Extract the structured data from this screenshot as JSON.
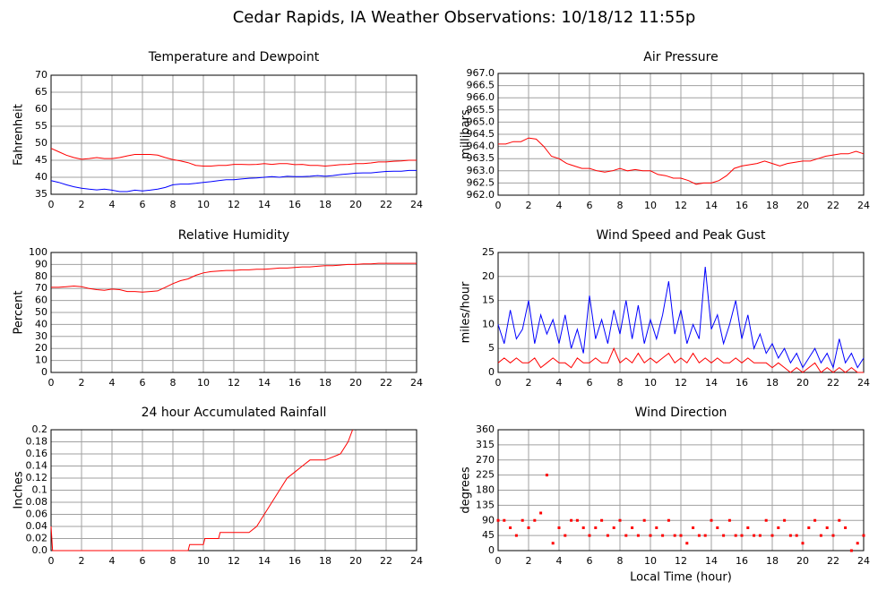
{
  "title": "Cedar Rapids, IA Weather Observations: 10/18/12 11:55p",
  "chart_data": [
    {
      "type": "line",
      "title": "Temperature and Dewpoint",
      "ylabel": "Fahrenheit",
      "x": [
        0,
        0.5,
        1,
        1.5,
        2,
        2.5,
        3,
        3.5,
        4,
        4.5,
        5,
        5.5,
        6,
        6.5,
        7,
        7.5,
        8,
        8.5,
        9,
        9.5,
        10,
        10.5,
        11,
        11.5,
        12,
        12.5,
        13,
        13.5,
        14,
        14.5,
        15,
        15.5,
        16,
        16.5,
        17,
        17.5,
        18,
        18.5,
        19,
        19.5,
        20,
        20.5,
        21,
        21.5,
        22,
        22.5,
        23,
        23.5,
        24
      ],
      "series": [
        {
          "color": "#ff0000",
          "values": [
            48.5,
            47.5,
            46.5,
            45.8,
            45.3,
            45.5,
            45.8,
            45.5,
            45.5,
            45.8,
            46.3,
            46.7,
            46.7,
            46.7,
            46.5,
            45.8,
            45.2,
            44.8,
            44.3,
            43.5,
            43.3,
            43.3,
            43.5,
            43.5,
            43.8,
            43.8,
            43.7,
            43.8,
            44,
            43.8,
            44,
            44,
            43.7,
            43.8,
            43.5,
            43.5,
            43.3,
            43.5,
            43.7,
            43.8,
            44,
            44,
            44.2,
            44.5,
            44.5,
            44.7,
            44.8,
            45,
            45
          ]
        },
        {
          "color": "#0000ff",
          "values": [
            39,
            38.5,
            37.8,
            37.2,
            36.8,
            36.5,
            36.3,
            36.5,
            36.2,
            35.8,
            35.8,
            36.2,
            36,
            36.2,
            36.5,
            37,
            37.8,
            38,
            38,
            38.2,
            38.5,
            38.7,
            39,
            39.3,
            39.3,
            39.5,
            39.7,
            39.8,
            40,
            40.2,
            40,
            40.3,
            40.2,
            40.2,
            40.3,
            40.5,
            40.3,
            40.5,
            40.8,
            41,
            41.2,
            41.3,
            41.3,
            41.5,
            41.7,
            41.8,
            41.8,
            42,
            42
          ]
        }
      ],
      "xlim": [
        0,
        24
      ],
      "xticks": [
        0,
        2,
        4,
        6,
        8,
        10,
        12,
        14,
        16,
        18,
        20,
        22,
        24
      ],
      "ylim": [
        35,
        70
      ],
      "yticks": [
        35,
        40,
        45,
        50,
        55,
        60,
        65,
        70
      ],
      "grid": true
    },
    {
      "type": "line",
      "title": "Air Pressure",
      "ylabel": "millibars",
      "x": [
        0,
        0.5,
        1,
        1.5,
        2,
        2.5,
        3,
        3.5,
        4,
        4.5,
        5,
        5.5,
        6,
        6.5,
        7,
        7.5,
        8,
        8.5,
        9,
        9.5,
        10,
        10.5,
        11,
        11.5,
        12,
        12.5,
        13,
        13.5,
        14,
        14.5,
        15,
        15.5,
        16,
        16.5,
        17,
        17.5,
        18,
        18.5,
        19,
        19.5,
        20,
        20.5,
        21,
        21.5,
        22,
        22.5,
        23,
        23.5,
        24
      ],
      "series": [
        {
          "color": "#ff0000",
          "values": [
            964.1,
            964.1,
            964.2,
            964.2,
            964.35,
            964.3,
            964.0,
            963.6,
            963.5,
            963.3,
            963.2,
            963.1,
            963.1,
            963.0,
            962.95,
            963.0,
            963.1,
            963.0,
            963.05,
            963.0,
            963.0,
            962.85,
            962.8,
            962.7,
            962.7,
            962.6,
            962.45,
            962.5,
            962.5,
            962.6,
            962.8,
            963.1,
            963.2,
            963.25,
            963.3,
            963.4,
            963.3,
            963.2,
            963.3,
            963.35,
            963.4,
            963.4,
            963.5,
            963.6,
            963.65,
            963.7,
            963.7,
            963.8,
            963.7
          ]
        }
      ],
      "xlim": [
        0,
        24
      ],
      "xticks": [
        0,
        2,
        4,
        6,
        8,
        10,
        12,
        14,
        16,
        18,
        20,
        22,
        24
      ],
      "ylim": [
        962,
        967
      ],
      "yticks": [
        {
          "value": 962,
          "label": "962.0"
        },
        962.5,
        {
          "value": 963,
          "label": "963.0"
        },
        963.5,
        {
          "value": 964,
          "label": "964.0"
        },
        964.5,
        {
          "value": 965,
          "label": "965.0"
        },
        965.5,
        {
          "value": 966,
          "label": "966.0"
        },
        966.5,
        {
          "value": 967,
          "label": "967.0"
        }
      ],
      "grid": true
    },
    {
      "type": "line",
      "title": "Relative Humidity",
      "ylabel": "Percent",
      "x": [
        0,
        0.5,
        1,
        1.5,
        2,
        2.5,
        3,
        3.5,
        4,
        4.5,
        5,
        5.5,
        6,
        6.5,
        7,
        7.5,
        8,
        8.5,
        9,
        9.5,
        10,
        10.5,
        11,
        11.5,
        12,
        12.5,
        13,
        13.5,
        14,
        14.5,
        15,
        15.5,
        16,
        16.5,
        17,
        17.5,
        18,
        18.5,
        19,
        19.5,
        20,
        20.5,
        21,
        21.5,
        22,
        22.5,
        23,
        23.5,
        24
      ],
      "series": [
        {
          "color": "#ff0000",
          "values": [
            71,
            71,
            71.5,
            72,
            71.5,
            70,
            69,
            68.5,
            69.5,
            69,
            67.5,
            67.5,
            67,
            67.5,
            68,
            71,
            74,
            76.5,
            78,
            81,
            83,
            84,
            84.5,
            85,
            85,
            85.5,
            85.5,
            86,
            86,
            86.5,
            87,
            87,
            87.5,
            88,
            88,
            88.5,
            89,
            89,
            89.5,
            90,
            90,
            90.5,
            90.5,
            91,
            91,
            91,
            91,
            91,
            91
          ]
        }
      ],
      "xlim": [
        0,
        24
      ],
      "xticks": [
        0,
        2,
        4,
        6,
        8,
        10,
        12,
        14,
        16,
        18,
        20,
        22,
        24
      ],
      "ylim": [
        0,
        100
      ],
      "yticks": [
        0,
        10,
        20,
        30,
        40,
        50,
        60,
        70,
        80,
        90,
        100
      ],
      "grid": true
    },
    {
      "type": "line",
      "title": "Wind Speed and Peak Gust",
      "ylabel": "miles/hour",
      "x": [
        0,
        0.4,
        0.8,
        1.2,
        1.6,
        2,
        2.4,
        2.8,
        3.2,
        3.6,
        4,
        4.4,
        4.8,
        5.2,
        5.6,
        6,
        6.4,
        6.8,
        7.2,
        7.6,
        8,
        8.4,
        8.8,
        9.2,
        9.6,
        10,
        10.4,
        10.8,
        11.2,
        11.6,
        12,
        12.4,
        12.8,
        13.2,
        13.6,
        14,
        14.4,
        14.8,
        15.2,
        15.6,
        16,
        16.4,
        16.8,
        17.2,
        17.6,
        18,
        18.4,
        18.8,
        19.2,
        19.6,
        20,
        20.4,
        20.8,
        21.2,
        21.6,
        22,
        22.4,
        22.8,
        23.2,
        23.6,
        24
      ],
      "series": [
        {
          "color": "#0000ff",
          "values": [
            10,
            6,
            13,
            7,
            9,
            15,
            6,
            12,
            8,
            11,
            6,
            12,
            5,
            9,
            4,
            16,
            7,
            11,
            6,
            13,
            8,
            15,
            7,
            14,
            6,
            11,
            7,
            12,
            19,
            8,
            13,
            6,
            10,
            7,
            22,
            9,
            12,
            6,
            10,
            15,
            7,
            12,
            5,
            8,
            4,
            6,
            3,
            5,
            2,
            4,
            1,
            3,
            5,
            2,
            4,
            1,
            7,
            2,
            4,
            1,
            3
          ]
        },
        {
          "color": "#ff0000",
          "values": [
            2,
            3,
            2,
            3,
            2,
            2,
            3,
            1,
            2,
            3,
            2,
            2,
            1,
            3,
            2,
            2,
            3,
            2,
            2,
            5,
            2,
            3,
            2,
            4,
            2,
            3,
            2,
            3,
            4,
            2,
            3,
            2,
            4,
            2,
            3,
            2,
            3,
            2,
            2,
            3,
            2,
            3,
            2,
            2,
            2,
            1,
            2,
            1,
            0,
            1,
            0,
            1,
            2,
            0,
            1,
            0,
            1,
            0,
            1,
            0,
            0
          ]
        }
      ],
      "xlim": [
        0,
        24
      ],
      "xticks": [
        0,
        2,
        4,
        6,
        8,
        10,
        12,
        14,
        16,
        18,
        20,
        22,
        24
      ],
      "ylim": [
        0,
        25
      ],
      "yticks": [
        0,
        5,
        10,
        15,
        20,
        25
      ],
      "grid": true
    },
    {
      "type": "line",
      "title": "24 hour Accumulated Rainfall",
      "ylabel": "Inches",
      "x": [
        0,
        0.1,
        9,
        9.1,
        10,
        10.1,
        11,
        11.1,
        13,
        13.5,
        14,
        14.5,
        15,
        15.5,
        16,
        16.5,
        17,
        18,
        19,
        19.5,
        19.8
      ],
      "series": [
        {
          "color": "#ff0000",
          "values": [
            0.04,
            0,
            0,
            0.01,
            0.01,
            0.02,
            0.02,
            0.03,
            0.03,
            0.04,
            0.06,
            0.08,
            0.1,
            0.12,
            0.13,
            0.14,
            0.15,
            0.15,
            0.16,
            0.18,
            0.2
          ]
        }
      ],
      "xlim": [
        0,
        24
      ],
      "xticks": [
        0,
        2,
        4,
        6,
        8,
        10,
        12,
        14,
        16,
        18,
        20,
        22,
        24
      ],
      "ylim": [
        0,
        0.2
      ],
      "yticks": [
        {
          "value": 0,
          "label": "0.0"
        },
        0.02,
        0.04,
        0.06,
        0.08,
        0.1,
        0.12,
        0.14,
        0.16,
        0.18,
        0.2
      ],
      "grid": true
    },
    {
      "type": "scatter",
      "title": "Wind Direction",
      "ylabel": "degrees",
      "xlabel": "Local Time (hour)",
      "x": [
        0,
        0.4,
        0.8,
        1.2,
        1.6,
        2,
        2.4,
        2.8,
        3.2,
        3.6,
        4,
        4.4,
        4.8,
        5.2,
        5.6,
        6,
        6.4,
        6.8,
        7.2,
        7.6,
        8,
        8.4,
        8.8,
        9.2,
        9.6,
        10,
        10.4,
        10.8,
        11.2,
        11.6,
        12,
        12.4,
        12.8,
        13.2,
        13.6,
        14,
        14.4,
        14.8,
        15.2,
        15.6,
        16,
        16.4,
        16.8,
        17.2,
        17.6,
        18,
        18.4,
        18.8,
        19.2,
        19.6,
        20,
        20.4,
        20.8,
        21.2,
        21.6,
        22,
        22.4,
        22.8,
        23.2,
        23.6,
        24
      ],
      "series": [
        {
          "color": "#ff0000",
          "values": [
            90,
            90,
            68,
            45,
            90,
            68,
            90,
            112,
            225,
            22,
            68,
            45,
            90,
            90,
            68,
            45,
            68,
            90,
            45,
            68,
            90,
            45,
            68,
            45,
            90,
            45,
            68,
            45,
            90,
            45,
            45,
            22,
            68,
            45,
            45,
            90,
            68,
            45,
            90,
            45,
            45,
            68,
            45,
            45,
            90,
            45,
            68,
            90,
            45,
            45,
            22,
            68,
            90,
            45,
            68,
            45,
            90,
            68,
            0,
            22,
            45
          ]
        }
      ],
      "xlim": [
        0,
        24
      ],
      "xticks": [
        0,
        2,
        4,
        6,
        8,
        10,
        12,
        14,
        16,
        18,
        20,
        22,
        24
      ],
      "ylim": [
        0,
        360
      ],
      "yticks": [
        0,
        45,
        90,
        135,
        180,
        225,
        270,
        315,
        360
      ],
      "grid": true
    }
  ]
}
